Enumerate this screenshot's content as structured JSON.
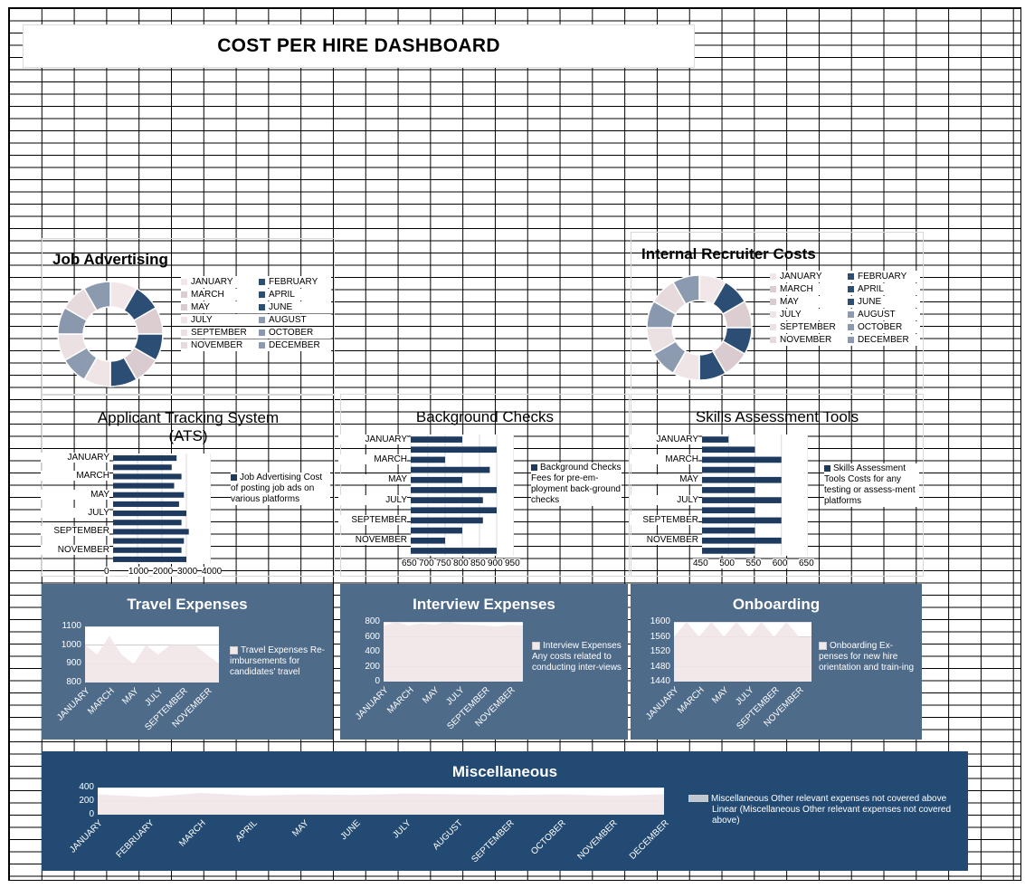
{
  "dashboard": {
    "title": "COST PER HIRE DASHBOARD"
  },
  "months": [
    "JANUARY",
    "FEBRUARY",
    "MARCH",
    "APRIL",
    "MAY",
    "JUNE",
    "JULY",
    "AUGUST",
    "SEPTEMBER",
    "OCTOBER",
    "NOVEMBER",
    "DECEMBER"
  ],
  "alt_months": [
    "JANUARY",
    "MARCH",
    "MAY",
    "JULY",
    "SEPTEMBER",
    "NOVEMBER"
  ],
  "donut_colors": [
    "#f1e7e8",
    "#2d4e74",
    "#dccdd0",
    "#2d4e74",
    "#d9cbcf",
    "#2d4e74",
    "#efe4e6",
    "#8d9bb0",
    "#ebe0e2",
    "#8a98ad",
    "#e6dadd",
    "#8c9aaf"
  ],
  "job_advertising": {
    "title": "Job Advertising",
    "legend": [
      "JANUARY",
      "FEBRUARY",
      "MARCH",
      "APRIL",
      "MAY",
      "JUNE",
      "JULY",
      "AUGUST",
      "SEPTEMBER",
      "OCTOBER",
      "NOVEMBER",
      "DECEMBER"
    ]
  },
  "internal_recruiter": {
    "title": "Internal Recruiter Costs",
    "legend": [
      "JANUARY",
      "FEBRUARY",
      "MARCH",
      "APRIL",
      "MAY",
      "JUNE",
      "JULY",
      "AUGUST",
      "SEPTEMBER",
      "OCTOBER",
      "NOVEMBER",
      "DECEMBER"
    ]
  },
  "ats": {
    "title": "Applicant Tracking System (ATS)",
    "legend": "Job Advertising Cost of posting job ads on various platforms",
    "x_ticks": [
      "0",
      "1000",
      "2000",
      "3000",
      "4000"
    ]
  },
  "background": {
    "title": "Background Checks",
    "legend": "Background Checks Fees for pre-em-ployment back-ground checks",
    "x_ticks": [
      "650",
      "700",
      "750",
      "800",
      "850",
      "900",
      "950"
    ]
  },
  "skills": {
    "title": "Skills Assessment Tools",
    "legend": "Skills Assessment Tools Costs for any testing or assess-ment platforms",
    "x_ticks": [
      "450",
      "500",
      "550",
      "600",
      "650"
    ]
  },
  "travel": {
    "title": "Travel Expenses",
    "legend": "Travel Expenses Re-imbursements for candidates' travel",
    "y_ticks": [
      "1100",
      "1000",
      "900",
      "800"
    ]
  },
  "interview": {
    "title": "Interview Expenses",
    "legend": "Interview Expenses Any costs related to conducting inter-views",
    "y_ticks": [
      "800",
      "600",
      "400",
      "200",
      "0"
    ]
  },
  "onboarding": {
    "title": "Onboarding",
    "legend": "Onboarding Ex-penses for new hire orientation and train-ing",
    "y_ticks": [
      "1600",
      "1560",
      "1520",
      "1480",
      "1440"
    ]
  },
  "misc": {
    "title": "Miscellaneous",
    "legend_1": "Miscellaneous Other relevant expenses not covered above",
    "legend_2": "Linear (Miscellaneous Other relevant expenses not covered above)",
    "y_ticks": [
      "400",
      "200",
      "0"
    ]
  },
  "colors": {
    "navy": "#1f3a5f",
    "panel_blue": "#4f6b8a",
    "panel_dark": "#234a72"
  },
  "chart_data": [
    {
      "type": "pie",
      "title": "Job Advertising",
      "categories": [
        "JANUARY",
        "FEBRUARY",
        "MARCH",
        "APRIL",
        "MAY",
        "JUNE",
        "JULY",
        "AUGUST",
        "SEPTEMBER",
        "OCTOBER",
        "NOVEMBER",
        "DECEMBER"
      ],
      "values": [
        1,
        1,
        1,
        1,
        1,
        1,
        1,
        1,
        1,
        1,
        1,
        1
      ]
    },
    {
      "type": "pie",
      "title": "Internal Recruiter Costs",
      "categories": [
        "JANUARY",
        "FEBRUARY",
        "MARCH",
        "APRIL",
        "MAY",
        "JUNE",
        "JULY",
        "AUGUST",
        "SEPTEMBER",
        "OCTOBER",
        "NOVEMBER",
        "DECEMBER"
      ],
      "values": [
        1,
        1,
        1,
        1,
        1,
        1,
        1,
        1,
        1,
        1,
        1,
        1
      ]
    },
    {
      "type": "bar",
      "title": "Applicant Tracking System (ATS)",
      "categories": [
        "JANUARY",
        "FEBRUARY",
        "MARCH",
        "APRIL",
        "MAY",
        "JUNE",
        "JULY",
        "AUGUST",
        "SEPTEMBER",
        "OCTOBER",
        "NOVEMBER",
        "DECEMBER"
      ],
      "values": [
        2600,
        2400,
        2800,
        2500,
        2900,
        2700,
        3000,
        2800,
        3100,
        2900,
        2800,
        3000
      ],
      "xlim": [
        0,
        4000
      ]
    },
    {
      "type": "bar",
      "title": "Background Checks",
      "categories": [
        "JANUARY",
        "FEBRUARY",
        "MARCH",
        "APRIL",
        "MAY",
        "JUNE",
        "JULY",
        "AUGUST",
        "SEPTEMBER",
        "OCTOBER",
        "NOVEMBER",
        "DECEMBER"
      ],
      "values": [
        800,
        900,
        750,
        880,
        800,
        900,
        860,
        900,
        860,
        800,
        750,
        900
      ],
      "xlim": [
        650,
        950
      ]
    },
    {
      "type": "bar",
      "title": "Skills Assessment Tools",
      "categories": [
        "JANUARY",
        "FEBRUARY",
        "MARCH",
        "APRIL",
        "MAY",
        "JUNE",
        "JULY",
        "AUGUST",
        "SEPTEMBER",
        "OCTOBER",
        "NOVEMBER",
        "DECEMBER"
      ],
      "values": [
        500,
        550,
        600,
        550,
        600,
        550,
        600,
        550,
        600,
        550,
        600,
        550
      ],
      "xlim": [
        450,
        650
      ]
    },
    {
      "type": "area",
      "title": "Travel Expenses",
      "categories": [
        "JANUARY",
        "FEBRUARY",
        "MARCH",
        "APRIL",
        "MAY",
        "JUNE",
        "JULY",
        "AUGUST",
        "SEPTEMBER",
        "OCTOBER",
        "NOVEMBER",
        "DECEMBER"
      ],
      "values": [
        1000,
        950,
        1050,
        950,
        900,
        1000,
        950,
        1000,
        1000,
        1000,
        950,
        900
      ],
      "ylim": [
        800,
        1100
      ]
    },
    {
      "type": "area",
      "title": "Interview Expenses",
      "categories": [
        "JANUARY",
        "FEBRUARY",
        "MARCH",
        "APRIL",
        "MAY",
        "JUNE",
        "JULY",
        "AUGUST",
        "SEPTEMBER",
        "OCTOBER",
        "NOVEMBER",
        "DECEMBER"
      ],
      "values": [
        750,
        800,
        750,
        780,
        760,
        800,
        770,
        760,
        750,
        740,
        760,
        750
      ],
      "ylim": [
        0,
        800
      ]
    },
    {
      "type": "area",
      "title": "Onboarding",
      "categories": [
        "JANUARY",
        "FEBRUARY",
        "MARCH",
        "APRIL",
        "MAY",
        "JUNE",
        "JULY",
        "AUGUST",
        "SEPTEMBER",
        "OCTOBER",
        "NOVEMBER",
        "DECEMBER"
      ],
      "values": [
        1560,
        1600,
        1560,
        1600,
        1560,
        1600,
        1560,
        1600,
        1560,
        1600,
        1560,
        1560
      ],
      "ylim": [
        1440,
        1600
      ]
    },
    {
      "type": "area",
      "title": "Miscellaneous",
      "categories": [
        "JANUARY",
        "FEBRUARY",
        "MARCH",
        "APRIL",
        "MAY",
        "JUNE",
        "JULY",
        "AUGUST",
        "SEPTEMBER",
        "OCTOBER",
        "NOVEMBER",
        "DECEMBER"
      ],
      "values": [
        300,
        260,
        320,
        280,
        300,
        290,
        310,
        300,
        290,
        300,
        280,
        300
      ],
      "ylim": [
        0,
        400
      ]
    }
  ]
}
